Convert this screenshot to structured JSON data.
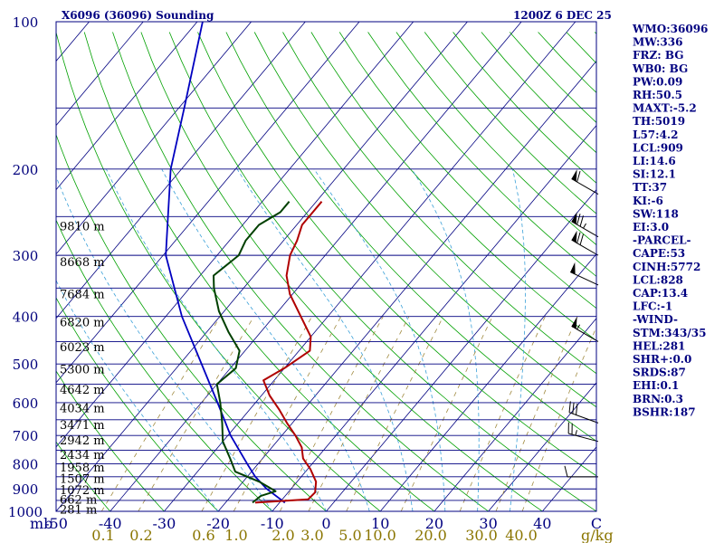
{
  "header": {
    "station": "X6096 (36096) Sounding",
    "time": "1200Z  6 DEC 25"
  },
  "indices": [
    "WMO:36096",
    "MW:336",
    "FRZ: BG",
    "WB0: BG",
    "PW:0.09",
    "RH:50.5",
    "MAXT:-5.2",
    "TH:5019",
    "L57:4.2",
    "LCL:909",
    "LI:14.6",
    "SI:12.1",
    "TT:37",
    "KI:-6",
    "SW:118",
    "EI:3.0",
    "-PARCEL-",
    "CAPE:53",
    "CINH:5772",
    "LCL:828",
    "CAP:13.4",
    "LFC:-1",
    "-WIND-",
    "STM:343/35",
    "HEL:281",
    "SHR+:0.0",
    "SRDS:87",
    "EHI:0.1",
    "BRN:0.3",
    "BSHR:187"
  ],
  "colors": {
    "frame": "#000080",
    "isobar": "#000080",
    "isotherm": "#000080",
    "dry_adiabat": "#00a000",
    "moist_adiabat": "#3aa0d8",
    "mixing_ratio": "#a08a40",
    "temperature": "#b00000",
    "dewpoint": "#004000",
    "parcel": "#0000c0",
    "wind": "#000000"
  },
  "chart_data": {
    "type": "skew-T log-P",
    "pressure_axis": {
      "unit": "mb",
      "log_scale": true,
      "range": [
        1000,
        100
      ],
      "ticks": [
        100,
        200,
        300,
        400,
        500,
        600,
        700,
        800,
        900,
        1000
      ],
      "tick_labels": [
        "100",
        "200",
        "300",
        "400",
        "500",
        "600",
        "700",
        "800",
        "900",
        "1000"
      ]
    },
    "temperature_axis": {
      "unit": "C",
      "range_at_bottom": [
        -50,
        50
      ],
      "ticks": [
        -50,
        -40,
        -30,
        -20,
        -10,
        0,
        10,
        20,
        30,
        40,
        50
      ],
      "tick_labels": [
        "-50",
        "-40",
        "-30",
        "-20",
        "-10",
        "0",
        "10",
        "20",
        "30",
        "40",
        "C"
      ]
    },
    "corner_label": "mb",
    "mixing_ratio_axis": {
      "unit": "g/kg",
      "ticks": [
        0.1,
        0.2,
        0.6,
        1.0,
        2.0,
        3.0,
        5.0,
        10.0,
        20.0,
        30.0,
        40.0
      ],
      "tick_labels": [
        "0.1",
        "0.2",
        "0.6",
        "1.0",
        "2.0",
        "3.0",
        "5.0",
        "10.0",
        "20.0",
        "30.0",
        "40.0"
      ],
      "unit_label": "g/kg"
    },
    "height_labels": [
      {
        "p": 990,
        "label": "281 m"
      },
      {
        "p": 945,
        "label": "662 m"
      },
      {
        "p": 902,
        "label": "1072 m"
      },
      {
        "p": 857,
        "label": "1507 m"
      },
      {
        "p": 812,
        "label": "1958 m"
      },
      {
        "p": 764,
        "label": "2434 m"
      },
      {
        "p": 714,
        "label": "2942 m"
      },
      {
        "p": 664,
        "label": "3471 m"
      },
      {
        "p": 614,
        "label": "4034 m"
      },
      {
        "p": 563,
        "label": "4642 m"
      },
      {
        "p": 512,
        "label": "5300 m"
      },
      {
        "p": 461,
        "label": "6023 m"
      },
      {
        "p": 410,
        "label": "6820 m"
      },
      {
        "p": 359,
        "label": "7684 m"
      },
      {
        "p": 309,
        "label": "8668 m"
      },
      {
        "p": 261,
        "label": "9810 m"
      }
    ],
    "temperature_profile": [
      {
        "p": 960,
        "t": -14.5
      },
      {
        "p": 945,
        "t": -5.2
      },
      {
        "p": 915,
        "t": -5.0
      },
      {
        "p": 870,
        "t": -6.5
      },
      {
        "p": 820,
        "t": -9.5
      },
      {
        "p": 780,
        "t": -12.5
      },
      {
        "p": 740,
        "t": -14.5
      },
      {
        "p": 700,
        "t": -17.5
      },
      {
        "p": 660,
        "t": -21.0
      },
      {
        "p": 620,
        "t": -24.5
      },
      {
        "p": 580,
        "t": -28.5
      },
      {
        "p": 540,
        "t": -32.0
      },
      {
        "p": 510,
        "t": -30.0
      },
      {
        "p": 470,
        "t": -28.0
      },
      {
        "p": 440,
        "t": -30.0
      },
      {
        "p": 400,
        "t": -35.0
      },
      {
        "p": 360,
        "t": -40.5
      },
      {
        "p": 330,
        "t": -44.0
      },
      {
        "p": 300,
        "t": -46.5
      },
      {
        "p": 280,
        "t": -47.5
      },
      {
        "p": 260,
        "t": -49.0
      },
      {
        "p": 245,
        "t": -49.0
      },
      {
        "p": 233,
        "t": -49.0
      }
    ],
    "dewpoint_profile": [
      {
        "p": 960,
        "t": -15.0
      },
      {
        "p": 930,
        "t": -14.5
      },
      {
        "p": 910,
        "t": -12.5
      },
      {
        "p": 870,
        "t": -17.0
      },
      {
        "p": 830,
        "t": -23.0
      },
      {
        "p": 780,
        "t": -26.0
      },
      {
        "p": 720,
        "t": -30.0
      },
      {
        "p": 660,
        "t": -33.0
      },
      {
        "p": 600,
        "t": -36.5
      },
      {
        "p": 550,
        "t": -40.0
      },
      {
        "p": 510,
        "t": -39.0
      },
      {
        "p": 470,
        "t": -41.0
      },
      {
        "p": 430,
        "t": -46.0
      },
      {
        "p": 390,
        "t": -51.0
      },
      {
        "p": 350,
        "t": -55.5
      },
      {
        "p": 330,
        "t": -57.5
      },
      {
        "p": 300,
        "t": -56.0
      },
      {
        "p": 280,
        "t": -57.0
      },
      {
        "p": 260,
        "t": -57.0
      },
      {
        "p": 245,
        "t": -55.0
      },
      {
        "p": 233,
        "t": -55.0
      }
    ],
    "parcel_profile": [
      {
        "p": 960,
        "t": -9.0
      },
      {
        "p": 900,
        "t": -14.5
      },
      {
        "p": 850,
        "t": -18.5
      },
      {
        "p": 800,
        "t": -22.0
      },
      {
        "p": 700,
        "t": -29.5
      },
      {
        "p": 600,
        "t": -37.0
      },
      {
        "p": 500,
        "t": -46.0
      },
      {
        "p": 400,
        "t": -57.0
      },
      {
        "p": 300,
        "t": -69.5
      },
      {
        "p": 200,
        "t": -82.0
      },
      {
        "p": 150,
        "t": -89.0
      },
      {
        "p": 100,
        "t": -99.0
      }
    ],
    "wind_barbs": [
      {
        "p": 225,
        "dir": 300,
        "speed_kt": 60
      },
      {
        "p": 275,
        "dir": 300,
        "speed_kt": 75
      },
      {
        "p": 300,
        "dir": 300,
        "speed_kt": 70
      },
      {
        "p": 345,
        "dir": 295,
        "speed_kt": 50
      },
      {
        "p": 450,
        "dir": 300,
        "speed_kt": 55
      },
      {
        "p": 660,
        "dir": 290,
        "speed_kt": 30
      },
      {
        "p": 720,
        "dir": 285,
        "speed_kt": 25
      },
      {
        "p": 850,
        "dir": 270,
        "speed_kt": 10
      }
    ]
  }
}
